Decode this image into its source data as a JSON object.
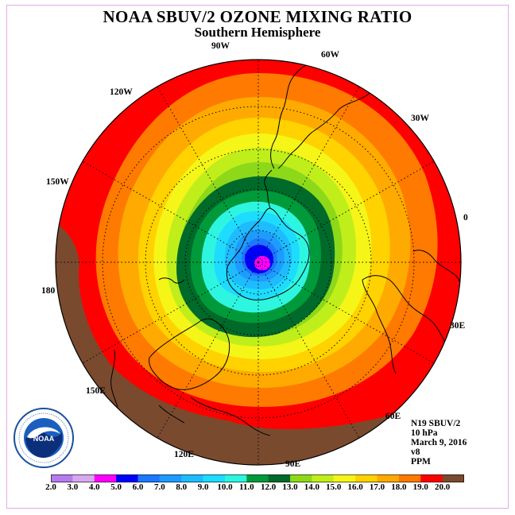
{
  "title": "NOAA SBUV/2 OZONE MIXING RATIO",
  "subtitle": "Southern Hemisphere",
  "longitudes": [
    "90W",
    "60W",
    "30W",
    "0",
    "30E",
    "60E",
    "90E",
    "120E",
    "150E",
    "180",
    "150W",
    "120W"
  ],
  "info": [
    "N19 SBUV/2",
    "10 hPa",
    "March 9, 2016",
    "v8",
    "PPM"
  ],
  "logo_text": "NOAA",
  "colorbar": {
    "ticks": [
      "2.0",
      "3.0",
      "4.0",
      "5.0",
      "6.0",
      "7.0",
      "8.0",
      "9.0",
      "10.0",
      "11.0",
      "12.0",
      "13.0",
      "14.0",
      "15.0",
      "16.0",
      "17.0",
      "18.0",
      "19.0",
      "20.0"
    ],
    "colors": [
      "#b57bef",
      "#d8a8ef",
      "#ff00ff",
      "#0000ff",
      "#1e78ff",
      "#1e9bff",
      "#1ebcff",
      "#1edcff",
      "#2ef5e0",
      "#009a3a",
      "#006a2a",
      "#8ed81a",
      "#c0ee1a",
      "#f5f518",
      "#ffd200",
      "#ffaa00",
      "#ff7a00",
      "#ff0000",
      "#7a4a2e"
    ]
  },
  "chart_data": {
    "type": "heatmap",
    "title": "NOAA SBUV/2 OZONE MIXING RATIO",
    "subtitle": "Southern Hemisphere",
    "units": "PPM",
    "level": "10 hPa",
    "date": "March 9, 2016",
    "instrument": "N19 SBUV/2",
    "version": "v8",
    "projection": "polar stereographic, South Pole centered",
    "value_range": [
      2.0,
      20.0
    ],
    "contour_interval": 1.0,
    "minimum_region": "near South Pole, ~4-6 PPM",
    "maximum_region": "outer mid-latitudes, 19-20 PPM"
  }
}
